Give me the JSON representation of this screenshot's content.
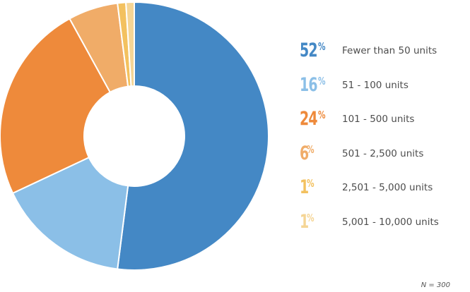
{
  "chart_data": {
    "type": "pie",
    "variant": "donut",
    "title": "",
    "slices": [
      {
        "label": "Fewer than 50 units",
        "value": 52,
        "pct_label": "52",
        "color": "#4488c5"
      },
      {
        "label": "51 - 100 units",
        "value": 16,
        "pct_label": "16",
        "color": "#8bbfe7"
      },
      {
        "label": "101 - 500 units",
        "value": 24,
        "pct_label": "24",
        "color": "#ee8a3b"
      },
      {
        "label": "501 - 2,500 units",
        "value": 6,
        "pct_label": "6",
        "color": "#f0ac68"
      },
      {
        "label": "2,501 - 5,000 units",
        "value": 1,
        "pct_label": "1",
        "color": "#f3c15f"
      },
      {
        "label": "5,001 - 10,000 units",
        "value": 1,
        "pct_label": "1",
        "color": "#f5d595"
      }
    ],
    "percent_symbol": "%",
    "legend_position": "right",
    "note": "N = 300"
  }
}
